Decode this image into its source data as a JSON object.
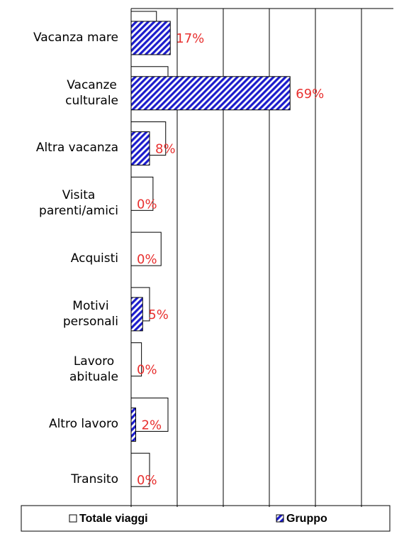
{
  "chart_data": {
    "type": "hbar",
    "categories": [
      "Vacanza mare",
      "Vacanze\nculturale",
      "Altra vacanza",
      "Visita\nparenti/amici",
      "Acquisti",
      "Motivi\npersonali",
      "Lavoro\nabituale",
      "Altro lavoro",
      "Transito"
    ],
    "series": [
      {
        "name": "Totale viaggi",
        "color": "#ffffff",
        "values": [
          11,
          16,
          15,
          9.5,
          13,
          8,
          4.5,
          16,
          8
        ]
      },
      {
        "name": "Gruppo",
        "color": "#1c1ccc",
        "values": [
          17,
          69,
          8,
          0,
          0,
          5,
          0,
          2,
          0
        ],
        "value_labels": [
          "17%",
          "69%",
          "8%",
          "0%",
          "0%",
          "5%",
          "0%",
          "2%",
          "0%"
        ],
        "label_color": "#e8302f"
      }
    ],
    "xlim": [
      0,
      100
    ],
    "xticks": [
      0,
      20,
      40,
      60,
      80,
      100
    ],
    "grid": true,
    "legend": "bottom"
  }
}
